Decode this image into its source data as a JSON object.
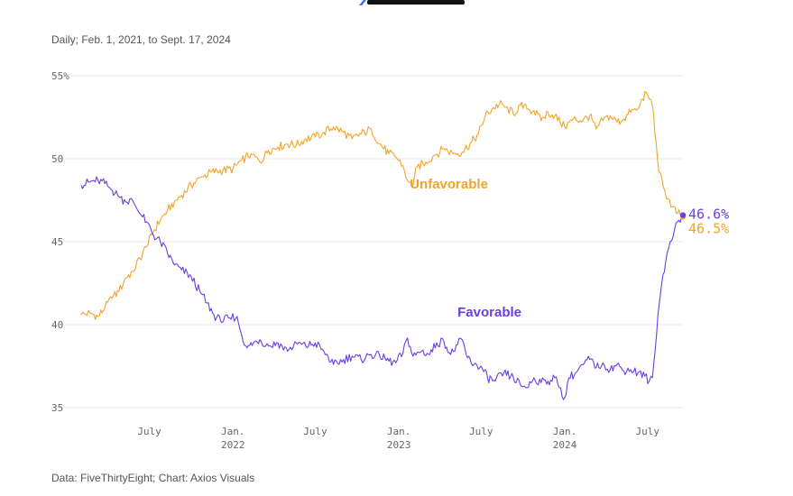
{
  "header": {
    "subtitle": "Daily; Feb. 1, 2021, to Sept. 17, 2024"
  },
  "footer": {
    "source": "Data: FiveThirtyEight; Chart: Axios Visuals"
  },
  "colors": {
    "favorable": "#6b3fe0",
    "unfavorable": "#f0a42a",
    "grid": "#e8e8e8",
    "logo": "#111111",
    "logo_accent": "#2f6bff"
  },
  "chart_data": {
    "type": "line",
    "ylim": [
      35,
      55
    ],
    "yticks": [
      {
        "value": 55,
        "label": "55%"
      },
      {
        "value": 50,
        "label": "50"
      },
      {
        "value": 45,
        "label": "45"
      },
      {
        "value": 40,
        "label": "40"
      },
      {
        "value": 35,
        "label": "35"
      }
    ],
    "xlim": [
      "2021-02-01",
      "2024-09-17"
    ],
    "xticks": [
      {
        "date": "2021-07-01",
        "label": "July",
        "sub": ""
      },
      {
        "date": "2022-01-01",
        "label": "Jan.",
        "sub": "2022"
      },
      {
        "date": "2022-07-01",
        "label": "July",
        "sub": ""
      },
      {
        "date": "2023-01-01",
        "label": "Jan.",
        "sub": "2023"
      },
      {
        "date": "2023-07-01",
        "label": "July",
        "sub": ""
      },
      {
        "date": "2024-01-01",
        "label": "Jan.",
        "sub": "2024"
      },
      {
        "date": "2024-07-01",
        "label": "July",
        "sub": ""
      }
    ],
    "grid": true,
    "series": [
      {
        "name": "Unfavorable",
        "color": "#f0a42a",
        "end_label": "46.5%",
        "points": [
          [
            "2021-02-01",
            40.6
          ],
          [
            "2021-02-20",
            40.7
          ],
          [
            "2021-03-10",
            40.5
          ],
          [
            "2021-03-25",
            41.0
          ],
          [
            "2021-04-10",
            41.6
          ],
          [
            "2021-04-25",
            42.0
          ],
          [
            "2021-05-10",
            42.8
          ],
          [
            "2021-05-25",
            43.2
          ],
          [
            "2021-06-10",
            44.0
          ],
          [
            "2021-06-25",
            44.7
          ],
          [
            "2021-07-10",
            45.6
          ],
          [
            "2021-07-25",
            46.3
          ],
          [
            "2021-08-10",
            46.9
          ],
          [
            "2021-08-25",
            47.4
          ],
          [
            "2021-09-10",
            47.8
          ],
          [
            "2021-10-01",
            48.4
          ],
          [
            "2021-10-25",
            48.9
          ],
          [
            "2021-11-15",
            49.2
          ],
          [
            "2021-12-10",
            49.3
          ],
          [
            "2022-01-01",
            49.4
          ],
          [
            "2022-01-20",
            49.9
          ],
          [
            "2022-02-10",
            50.3
          ],
          [
            "2022-03-01",
            49.8
          ],
          [
            "2022-03-20",
            50.5
          ],
          [
            "2022-04-10",
            50.7
          ],
          [
            "2022-05-01",
            50.9
          ],
          [
            "2022-05-20",
            50.8
          ],
          [
            "2022-06-10",
            51.2
          ],
          [
            "2022-07-01",
            51.3
          ],
          [
            "2022-07-20",
            51.6
          ],
          [
            "2022-08-10",
            51.9
          ],
          [
            "2022-09-01",
            51.6
          ],
          [
            "2022-09-20",
            51.2
          ],
          [
            "2022-10-10",
            51.5
          ],
          [
            "2022-11-01",
            51.8
          ],
          [
            "2022-11-20",
            50.9
          ],
          [
            "2022-12-10",
            50.3
          ],
          [
            "2022-12-25",
            50.1
          ],
          [
            "2023-01-10",
            49.6
          ],
          [
            "2023-01-20",
            48.7
          ],
          [
            "2023-01-30",
            48.3
          ],
          [
            "2023-02-10",
            49.5
          ],
          [
            "2023-03-01",
            49.8
          ],
          [
            "2023-03-20",
            50.2
          ],
          [
            "2023-04-10",
            50.6
          ],
          [
            "2023-05-01",
            50.3
          ],
          [
            "2023-05-20",
            50.4
          ],
          [
            "2023-06-10",
            51.0
          ],
          [
            "2023-06-25",
            51.5
          ],
          [
            "2023-07-10",
            52.6
          ],
          [
            "2023-07-25",
            53.0
          ],
          [
            "2023-08-10",
            53.3
          ],
          [
            "2023-08-25",
            53.1
          ],
          [
            "2023-09-10",
            52.7
          ],
          [
            "2023-09-25",
            53.2
          ],
          [
            "2023-10-10",
            53.0
          ],
          [
            "2023-10-25",
            52.9
          ],
          [
            "2023-11-10",
            52.3
          ],
          [
            "2023-11-25",
            52.8
          ],
          [
            "2023-12-10",
            52.6
          ],
          [
            "2024-01-01",
            51.9
          ],
          [
            "2024-01-20",
            52.4
          ],
          [
            "2024-02-10",
            52.3
          ],
          [
            "2024-02-25",
            52.6
          ],
          [
            "2024-03-10",
            51.8
          ],
          [
            "2024-03-25",
            52.3
          ],
          [
            "2024-04-10",
            52.6
          ],
          [
            "2024-04-25",
            52.2
          ],
          [
            "2024-05-10",
            52.4
          ],
          [
            "2024-05-25",
            52.8
          ],
          [
            "2024-06-10",
            53.0
          ],
          [
            "2024-06-20",
            53.6
          ],
          [
            "2024-06-28",
            54.0
          ],
          [
            "2024-07-05",
            53.6
          ],
          [
            "2024-07-12",
            53.2
          ],
          [
            "2024-07-20",
            51.0
          ],
          [
            "2024-07-26",
            49.2
          ],
          [
            "2024-08-05",
            48.3
          ],
          [
            "2024-08-15",
            47.6
          ],
          [
            "2024-08-25",
            47.1
          ],
          [
            "2024-09-05",
            46.7
          ],
          [
            "2024-09-17",
            46.5
          ]
        ]
      },
      {
        "name": "Favorable",
        "color": "#6b3fe0",
        "end_label": "46.6%",
        "points": [
          [
            "2021-02-01",
            48.4
          ],
          [
            "2021-02-20",
            48.6
          ],
          [
            "2021-03-10",
            48.7
          ],
          [
            "2021-03-25",
            48.5
          ],
          [
            "2021-04-10",
            48.1
          ],
          [
            "2021-04-25",
            47.7
          ],
          [
            "2021-05-10",
            47.4
          ],
          [
            "2021-05-25",
            47.5
          ],
          [
            "2021-06-10",
            46.7
          ],
          [
            "2021-06-25",
            46.2
          ],
          [
            "2021-07-10",
            45.4
          ],
          [
            "2021-07-25",
            45.0
          ],
          [
            "2021-08-10",
            44.3
          ],
          [
            "2021-08-25",
            43.6
          ],
          [
            "2021-09-10",
            43.3
          ],
          [
            "2021-10-01",
            42.9
          ],
          [
            "2021-10-20",
            42.0
          ],
          [
            "2021-11-05",
            41.3
          ],
          [
            "2021-11-20",
            40.6
          ],
          [
            "2021-12-05",
            40.2
          ],
          [
            "2021-12-25",
            40.4
          ],
          [
            "2022-01-10",
            40.5
          ],
          [
            "2022-01-20",
            39.4
          ],
          [
            "2022-02-01",
            38.6
          ],
          [
            "2022-02-15",
            38.9
          ],
          [
            "2022-03-01",
            39.1
          ],
          [
            "2022-03-20",
            38.7
          ],
          [
            "2022-04-10",
            38.9
          ],
          [
            "2022-05-01",
            38.4
          ],
          [
            "2022-05-20",
            38.9
          ],
          [
            "2022-06-10",
            38.7
          ],
          [
            "2022-07-01",
            38.9
          ],
          [
            "2022-07-20",
            38.4
          ],
          [
            "2022-08-10",
            37.6
          ],
          [
            "2022-09-01",
            37.9
          ],
          [
            "2022-09-20",
            38.1
          ],
          [
            "2022-10-10",
            37.9
          ],
          [
            "2022-11-01",
            38.2
          ],
          [
            "2022-11-20",
            38.1
          ],
          [
            "2022-12-10",
            37.8
          ],
          [
            "2022-12-25",
            37.7
          ],
          [
            "2023-01-10",
            38.3
          ],
          [
            "2023-01-20",
            39.2
          ],
          [
            "2023-02-01",
            38.1
          ],
          [
            "2023-02-20",
            38.4
          ],
          [
            "2023-03-10",
            38.2
          ],
          [
            "2023-03-25",
            38.9
          ],
          [
            "2023-04-10",
            39.0
          ],
          [
            "2023-04-25",
            38.2
          ],
          [
            "2023-05-10",
            38.8
          ],
          [
            "2023-05-20",
            39.1
          ],
          [
            "2023-06-01",
            38.0
          ],
          [
            "2023-06-15",
            37.6
          ],
          [
            "2023-07-01",
            37.5
          ],
          [
            "2023-07-15",
            36.8
          ],
          [
            "2023-08-01",
            36.6
          ],
          [
            "2023-08-20",
            37.1
          ],
          [
            "2023-09-10",
            36.8
          ],
          [
            "2023-09-25",
            36.4
          ],
          [
            "2023-10-10",
            36.2
          ],
          [
            "2023-10-25",
            36.8
          ],
          [
            "2023-11-10",
            36.5
          ],
          [
            "2023-11-25",
            36.6
          ],
          [
            "2023-12-10",
            36.8
          ],
          [
            "2023-12-20",
            36.2
          ],
          [
            "2024-01-01",
            35.6
          ],
          [
            "2024-01-10",
            36.8
          ],
          [
            "2024-01-25",
            37.1
          ],
          [
            "2024-02-10",
            37.6
          ],
          [
            "2024-02-25",
            37.9
          ],
          [
            "2024-03-10",
            37.4
          ],
          [
            "2024-03-25",
            37.7
          ],
          [
            "2024-04-10",
            37.3
          ],
          [
            "2024-04-25",
            37.6
          ],
          [
            "2024-05-10",
            37.2
          ],
          [
            "2024-05-25",
            37.3
          ],
          [
            "2024-06-10",
            37.1
          ],
          [
            "2024-06-25",
            36.9
          ],
          [
            "2024-07-05",
            36.6
          ],
          [
            "2024-07-12",
            36.8
          ],
          [
            "2024-07-18",
            38.5
          ],
          [
            "2024-07-24",
            40.6
          ],
          [
            "2024-08-01",
            42.4
          ],
          [
            "2024-08-10",
            43.8
          ],
          [
            "2024-08-20",
            45.0
          ],
          [
            "2024-08-30",
            45.8
          ],
          [
            "2024-09-08",
            46.3
          ],
          [
            "2024-09-17",
            46.6
          ]
        ]
      }
    ],
    "annotations": [
      {
        "text": "Unfavorable",
        "series": "Unfavorable",
        "date": "2023-01-25",
        "value": 48.2
      },
      {
        "text": "Favorable",
        "series": "Favorable",
        "date": "2023-05-10",
        "value": 40.5
      }
    ]
  }
}
